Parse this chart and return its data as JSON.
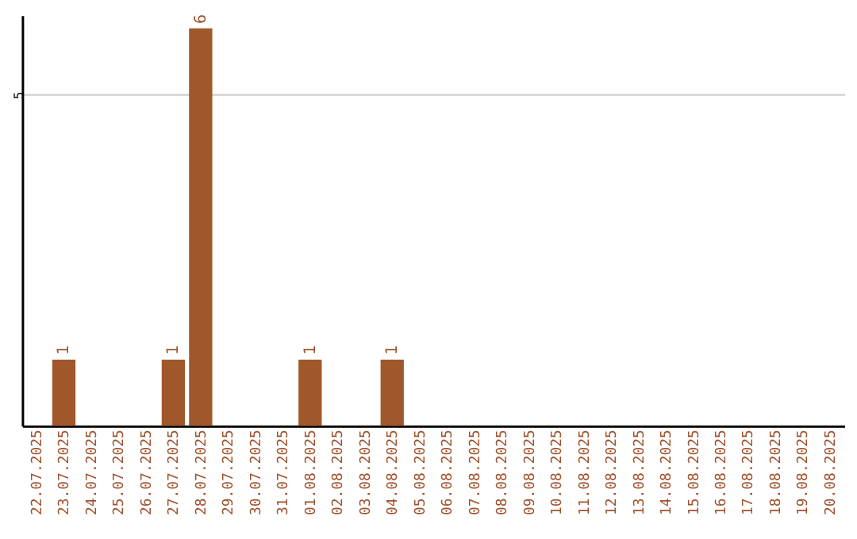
{
  "chart_data": {
    "type": "bar",
    "categories": [
      "22.07.2025",
      "23.07.2025",
      "24.07.2025",
      "25.07.2025",
      "26.07.2025",
      "27.07.2025",
      "28.07.2025",
      "29.07.2025",
      "30.07.2025",
      "31.07.2025",
      "01.08.2025",
      "02.08.2025",
      "03.08.2025",
      "04.08.2025",
      "05.08.2025",
      "06.08.2025",
      "07.08.2025",
      "08.08.2025",
      "09.08.2025",
      "10.08.2025",
      "11.08.2025",
      "12.08.2025",
      "13.08.2025",
      "14.08.2025",
      "15.08.2025",
      "16.08.2025",
      "17.08.2025",
      "18.08.2025",
      "19.08.2025",
      "20.08.2025"
    ],
    "values": [
      0,
      1,
      0,
      0,
      0,
      1,
      6,
      0,
      0,
      0,
      1,
      0,
      0,
      1,
      0,
      0,
      0,
      0,
      0,
      0,
      0,
      0,
      0,
      0,
      0,
      0,
      0,
      0,
      0,
      0
    ],
    "value_labels": [
      null,
      "1",
      null,
      null,
      null,
      "1",
      "6",
      null,
      null,
      null,
      "1",
      null,
      null,
      "1",
      null,
      null,
      null,
      null,
      null,
      null,
      null,
      null,
      null,
      null,
      null,
      null,
      null,
      null,
      null,
      null
    ],
    "color": "#a0582a",
    "ylim": [
      0,
      6.2
    ],
    "yticks": [
      5
    ],
    "grid": "y"
  }
}
